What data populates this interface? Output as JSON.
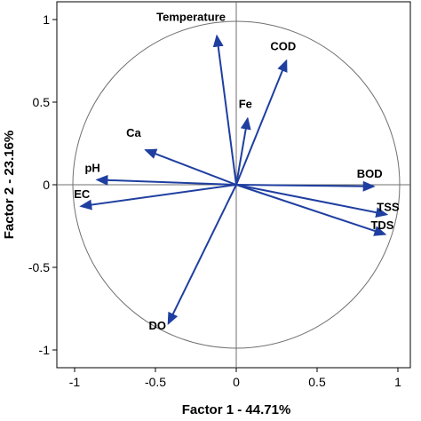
{
  "chart_data": {
    "type": "scatter",
    "title": "",
    "xlabel": "Factor 1 - 44.71%",
    "ylabel": "Factor 2 - 23.16%",
    "xlim": [
      -1.1,
      1.1
    ],
    "ylim": [
      -1.1,
      1.1
    ],
    "x_ticks": [
      "-1",
      "-0.5",
      "0",
      "0.5",
      "1"
    ],
    "y_ticks": [
      "1",
      "0.5",
      "0",
      "-0.5",
      "-1"
    ],
    "grid": false,
    "correlation_circle_radius": 1,
    "vectors": [
      {
        "name": "Temperature",
        "x": -0.12,
        "y": 0.9
      },
      {
        "name": "COD",
        "x": 0.31,
        "y": 0.75
      },
      {
        "name": "Fe",
        "x": 0.07,
        "y": 0.4
      },
      {
        "name": "Ca",
        "x": -0.56,
        "y": 0.21
      },
      {
        "name": "pH",
        "x": -0.86,
        "y": 0.03
      },
      {
        "name": "EC",
        "x": -0.96,
        "y": -0.13
      },
      {
        "name": "BOD",
        "x": 0.85,
        "y": -0.01
      },
      {
        "name": "TSS",
        "x": 0.93,
        "y": -0.18
      },
      {
        "name": "TDS",
        "x": 0.92,
        "y": -0.3
      },
      {
        "name": "DO",
        "x": -0.42,
        "y": -0.84
      }
    ],
    "colors": {
      "vector": "#1f3fa0",
      "circle": "#6f6f6f",
      "axis": "#000000"
    }
  }
}
